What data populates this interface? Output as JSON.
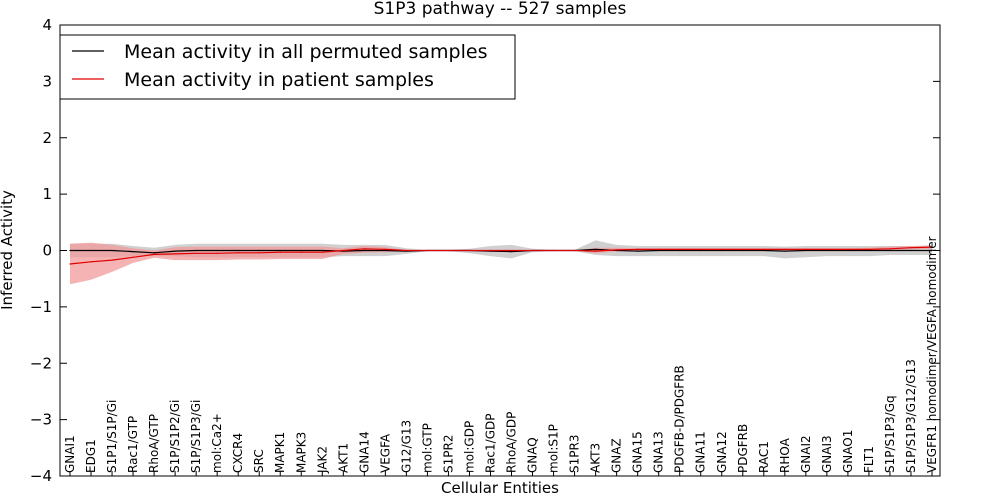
{
  "chart_data": {
    "type": "line",
    "title": "S1P3 pathway -- 527 samples",
    "xlabel": "Cellular Entities",
    "ylabel": "Inferred Activity",
    "ylim": [
      -4,
      4
    ],
    "yticks": [
      -4,
      -3,
      -2,
      -1,
      0,
      1,
      2,
      3,
      4
    ],
    "ytick_labels": [
      "−4",
      "−3",
      "−2",
      "−1",
      "0",
      "1",
      "2",
      "3",
      "4"
    ],
    "legend_position": "upper-left",
    "categories": [
      "GNAI1",
      "EDG1",
      "S1P1/S1P/Gi",
      "Rac1/GTP",
      "RhoA/GTP",
      "S1P/S1P2/Gi",
      "S1P/S1P3/Gi",
      "mol:Ca2+",
      "CXCR4",
      "SRC",
      "MAPK1",
      "MAPK3",
      "JAK2",
      "AKT1",
      "GNA14",
      "VEGFA",
      "G12/G13",
      "mol:GTP",
      "S1PR2",
      "mol:GDP",
      "Rac1/GDP",
      "RhoA/GDP",
      "GNAQ",
      "mol:S1P",
      "S1PR3",
      "AKT3",
      "GNAZ",
      "GNA15",
      "GNA13",
      "PDGFB-D/PDGFRB",
      "GNA11",
      "GNA12",
      "PDGFRB",
      "RAC1",
      "RHOA",
      "GNAI2",
      "GNAI3",
      "GNAO1",
      "FLT1",
      "S1P/S1P3/Gq",
      "S1P/S1P3/G12/G13",
      "VEGFR1 homodimer/VEGFA homodimer"
    ],
    "series": [
      {
        "name": "Mean activity in all permuted samples",
        "color": "#000000",
        "band_color": "#b0b0b0",
        "values": [
          0.0,
          0.0,
          0.0,
          -0.02,
          -0.04,
          -0.01,
          0.0,
          0.0,
          0.0,
          0.0,
          0.0,
          0.0,
          0.0,
          -0.01,
          0.0,
          0.0,
          -0.01,
          0.0,
          0.0,
          0.0,
          -0.01,
          -0.02,
          0.0,
          0.0,
          0.0,
          0.02,
          0.0,
          -0.01,
          0.0,
          0.0,
          0.0,
          0.0,
          0.0,
          0.0,
          -0.01,
          0.0,
          0.0,
          0.0,
          0.0,
          0.0,
          0.0,
          0.0
        ],
        "upper": [
          0.12,
          0.12,
          0.12,
          0.08,
          0.05,
          0.1,
          0.12,
          0.12,
          0.12,
          0.12,
          0.12,
          0.12,
          0.12,
          0.1,
          0.1,
          0.1,
          0.04,
          0.01,
          0.01,
          0.03,
          0.08,
          0.1,
          0.03,
          0.01,
          0.01,
          0.18,
          0.1,
          0.08,
          0.08,
          0.08,
          0.08,
          0.08,
          0.08,
          0.08,
          0.07,
          0.08,
          0.08,
          0.08,
          0.08,
          0.08,
          0.08,
          0.08
        ],
        "lower": [
          -0.12,
          -0.12,
          -0.12,
          -0.1,
          -0.1,
          -0.1,
          -0.12,
          -0.12,
          -0.12,
          -0.12,
          -0.12,
          -0.12,
          -0.12,
          -0.1,
          -0.1,
          -0.1,
          -0.06,
          -0.01,
          -0.01,
          -0.05,
          -0.1,
          -0.14,
          -0.03,
          -0.01,
          -0.01,
          -0.08,
          -0.1,
          -0.1,
          -0.1,
          -0.1,
          -0.1,
          -0.1,
          -0.1,
          -0.1,
          -0.14,
          -0.12,
          -0.1,
          -0.1,
          -0.1,
          -0.08,
          -0.08,
          -0.08
        ]
      },
      {
        "name": "Mean activity in patient samples",
        "color": "#e00000",
        "band_color": "#f29a9a",
        "values": [
          -0.24,
          -0.2,
          -0.17,
          -0.12,
          -0.07,
          -0.06,
          -0.05,
          -0.05,
          -0.04,
          -0.04,
          -0.03,
          -0.03,
          -0.03,
          0.0,
          0.03,
          0.02,
          0.0,
          0.0,
          0.0,
          0.0,
          0.0,
          0.0,
          0.0,
          0.0,
          0.0,
          -0.01,
          0.01,
          0.02,
          0.02,
          0.02,
          0.02,
          0.02,
          0.02,
          0.02,
          0.02,
          0.02,
          0.02,
          0.02,
          0.02,
          0.03,
          0.05,
          0.06
        ],
        "upper": [
          0.12,
          0.14,
          0.1,
          0.04,
          0.0,
          0.06,
          0.07,
          0.07,
          0.07,
          0.07,
          0.07,
          0.07,
          0.07,
          0.04,
          0.08,
          0.06,
          0.01,
          0.0,
          0.0,
          0.0,
          0.0,
          0.0,
          0.0,
          0.0,
          0.0,
          0.05,
          0.05,
          0.04,
          0.04,
          0.04,
          0.04,
          0.04,
          0.04,
          0.04,
          0.04,
          0.04,
          0.04,
          0.04,
          0.05,
          0.07,
          0.08,
          0.09
        ],
        "lower": [
          -0.6,
          -0.52,
          -0.38,
          -0.22,
          -0.13,
          -0.17,
          -0.17,
          -0.17,
          -0.16,
          -0.16,
          -0.15,
          -0.15,
          -0.15,
          -0.06,
          -0.04,
          -0.03,
          -0.01,
          0.0,
          0.0,
          0.0,
          0.0,
          0.0,
          0.0,
          0.0,
          0.0,
          -0.05,
          -0.01,
          0.0,
          0.0,
          0.0,
          0.0,
          0.0,
          0.0,
          0.0,
          0.0,
          0.0,
          0.0,
          0.0,
          0.0,
          0.0,
          0.02,
          0.03
        ]
      }
    ]
  }
}
